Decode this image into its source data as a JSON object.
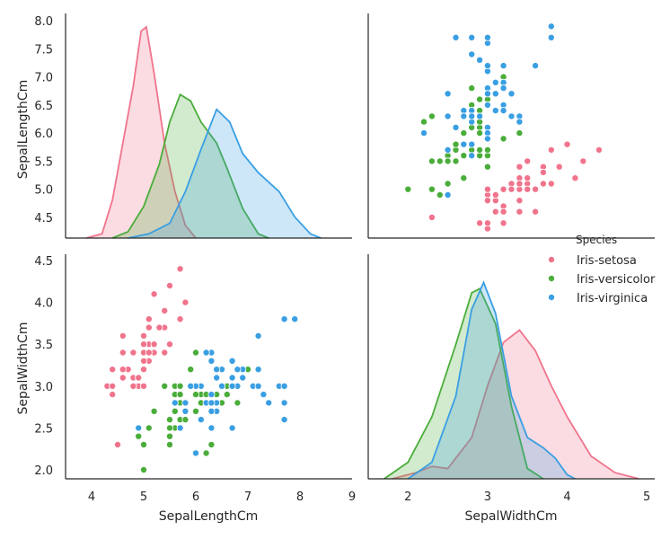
{
  "chart_data": {
    "type": "pairplot",
    "title": "",
    "variables": [
      "SepalLengthCm",
      "SepalWidthCm"
    ],
    "legend": {
      "title": "Species",
      "placement": "right",
      "entries": [
        {
          "label": "Iris-setosa",
          "color": "#f0748c"
        },
        {
          "label": "Iris-versicolor",
          "color": "#4aad3a"
        },
        {
          "label": "Iris-virginica",
          "color": "#3a9fe2"
        }
      ]
    },
    "axes": {
      "SepalLengthCm": {
        "range": [
          3.5,
          9.0
        ],
        "ticks": [
          "4",
          "5",
          "6",
          "7",
          "8",
          "9"
        ],
        "diag_ticks": [
          "4.5",
          "5.0",
          "5.5",
          "6.0",
          "6.5",
          "7.0",
          "7.5",
          "8.0"
        ]
      },
      "SepalWidthCm": {
        "range": [
          1.5,
          5.1
        ],
        "ticks": [
          "2",
          "3",
          "4",
          "5"
        ],
        "diag_ticks": [
          "2.0",
          "2.5",
          "3.0",
          "3.5",
          "4.0",
          "4.5"
        ]
      }
    },
    "kde": {
      "SepalLengthCm": [
        {
          "species": "Iris-setosa",
          "points": [
            [
              3.9,
              0.0
            ],
            [
              4.2,
              0.02
            ],
            [
              4.4,
              0.18
            ],
            [
              4.6,
              0.45
            ],
            [
              4.8,
              0.72
            ],
            [
              4.95,
              0.98
            ],
            [
              5.05,
              1.0
            ],
            [
              5.2,
              0.78
            ],
            [
              5.4,
              0.45
            ],
            [
              5.6,
              0.22
            ],
            [
              5.8,
              0.06
            ],
            [
              6.0,
              0.0
            ]
          ]
        },
        {
          "species": "Iris-versicolor",
          "points": [
            [
              4.4,
              0.0
            ],
            [
              4.7,
              0.03
            ],
            [
              5.0,
              0.15
            ],
            [
              5.3,
              0.35
            ],
            [
              5.5,
              0.55
            ],
            [
              5.7,
              0.68
            ],
            [
              5.9,
              0.65
            ],
            [
              6.1,
              0.55
            ],
            [
              6.4,
              0.45
            ],
            [
              6.6,
              0.33
            ],
            [
              6.9,
              0.14
            ],
            [
              7.2,
              0.02
            ],
            [
              7.4,
              0.0
            ]
          ]
        },
        {
          "species": "Iris-virginica",
          "points": [
            [
              4.7,
              0.0
            ],
            [
              5.1,
              0.02
            ],
            [
              5.5,
              0.07
            ],
            [
              5.8,
              0.22
            ],
            [
              6.1,
              0.42
            ],
            [
              6.4,
              0.61
            ],
            [
              6.65,
              0.55
            ],
            [
              6.9,
              0.4
            ],
            [
              7.2,
              0.31
            ],
            [
              7.6,
              0.22
            ],
            [
              7.9,
              0.1
            ],
            [
              8.2,
              0.02
            ],
            [
              8.4,
              0.0
            ]
          ]
        }
      ],
      "SepalWidthCm": [
        {
          "species": "Iris-setosa",
          "points": [
            [
              1.8,
              0.0
            ],
            [
              2.1,
              0.03
            ],
            [
              2.3,
              0.06
            ],
            [
              2.5,
              0.05
            ],
            [
              2.8,
              0.2
            ],
            [
              3.0,
              0.45
            ],
            [
              3.2,
              0.66
            ],
            [
              3.4,
              0.72
            ],
            [
              3.6,
              0.62
            ],
            [
              3.8,
              0.45
            ],
            [
              4.0,
              0.3
            ],
            [
              4.3,
              0.11
            ],
            [
              4.6,
              0.03
            ],
            [
              4.9,
              0.0
            ]
          ]
        },
        {
          "species": "Iris-versicolor",
          "points": [
            [
              1.7,
              0.0
            ],
            [
              2.0,
              0.08
            ],
            [
              2.3,
              0.3
            ],
            [
              2.6,
              0.65
            ],
            [
              2.8,
              0.9
            ],
            [
              2.9,
              0.92
            ],
            [
              3.1,
              0.75
            ],
            [
              3.3,
              0.35
            ],
            [
              3.5,
              0.05
            ],
            [
              3.7,
              0.0
            ]
          ]
        },
        {
          "species": "Iris-virginica",
          "points": [
            [
              2.0,
              0.0
            ],
            [
              2.3,
              0.08
            ],
            [
              2.6,
              0.4
            ],
            [
              2.8,
              0.82
            ],
            [
              2.95,
              0.95
            ],
            [
              3.1,
              0.8
            ],
            [
              3.3,
              0.4
            ],
            [
              3.5,
              0.2
            ],
            [
              3.7,
              0.15
            ],
            [
              3.85,
              0.1
            ],
            [
              4.0,
              0.02
            ],
            [
              4.1,
              0.0
            ]
          ]
        }
      ]
    },
    "scatter": [
      {
        "species": "Iris-setosa",
        "points": [
          [
            5.1,
            3.5
          ],
          [
            4.9,
            3.0
          ],
          [
            4.7,
            3.2
          ],
          [
            4.6,
            3.1
          ],
          [
            5.0,
            3.6
          ],
          [
            5.4,
            3.9
          ],
          [
            4.6,
            3.4
          ],
          [
            5.0,
            3.4
          ],
          [
            4.4,
            2.9
          ],
          [
            4.9,
            3.1
          ],
          [
            5.4,
            3.7
          ],
          [
            4.8,
            3.4
          ],
          [
            4.8,
            3.0
          ],
          [
            4.3,
            3.0
          ],
          [
            5.8,
            4.0
          ],
          [
            5.7,
            4.4
          ],
          [
            5.4,
            3.9
          ],
          [
            5.1,
            3.5
          ],
          [
            5.7,
            3.8
          ],
          [
            5.1,
            3.8
          ],
          [
            5.4,
            3.4
          ],
          [
            5.1,
            3.7
          ],
          [
            4.6,
            3.6
          ],
          [
            5.1,
            3.3
          ],
          [
            4.8,
            3.4
          ],
          [
            5.0,
            3.0
          ],
          [
            5.0,
            3.4
          ],
          [
            5.2,
            3.5
          ],
          [
            5.2,
            3.4
          ],
          [
            4.7,
            3.2
          ],
          [
            4.8,
            3.1
          ],
          [
            5.4,
            3.4
          ],
          [
            5.2,
            4.1
          ],
          [
            5.5,
            4.2
          ],
          [
            4.9,
            3.1
          ],
          [
            5.0,
            3.2
          ],
          [
            5.5,
            3.5
          ],
          [
            4.9,
            3.1
          ],
          [
            4.4,
            3.0
          ],
          [
            5.1,
            3.4
          ],
          [
            5.0,
            3.5
          ],
          [
            4.5,
            2.3
          ],
          [
            4.4,
            3.2
          ],
          [
            5.0,
            3.5
          ],
          [
            5.1,
            3.8
          ],
          [
            4.8,
            3.0
          ],
          [
            5.1,
            3.8
          ],
          [
            4.6,
            3.2
          ],
          [
            5.3,
            3.7
          ],
          [
            5.0,
            3.3
          ]
        ]
      },
      {
        "species": "Iris-versicolor",
        "points": [
          [
            7.0,
            3.2
          ],
          [
            6.4,
            3.2
          ],
          [
            6.9,
            3.1
          ],
          [
            5.5,
            2.3
          ],
          [
            6.5,
            2.8
          ],
          [
            5.7,
            2.8
          ],
          [
            6.3,
            3.3
          ],
          [
            4.9,
            2.4
          ],
          [
            6.6,
            2.9
          ],
          [
            5.2,
            2.7
          ],
          [
            5.0,
            2.0
          ],
          [
            5.9,
            3.0
          ],
          [
            6.0,
            2.2
          ],
          [
            6.1,
            2.9
          ],
          [
            5.6,
            2.9
          ],
          [
            6.7,
            3.1
          ],
          [
            5.6,
            3.0
          ],
          [
            5.8,
            2.7
          ],
          [
            6.2,
            2.2
          ],
          [
            5.6,
            2.5
          ],
          [
            5.9,
            3.2
          ],
          [
            6.1,
            2.8
          ],
          [
            6.3,
            2.5
          ],
          [
            6.1,
            2.8
          ],
          [
            6.4,
            2.9
          ],
          [
            6.6,
            3.0
          ],
          [
            6.8,
            2.8
          ],
          [
            6.7,
            3.0
          ],
          [
            6.0,
            2.9
          ],
          [
            5.7,
            2.6
          ],
          [
            5.5,
            2.4
          ],
          [
            5.5,
            2.4
          ],
          [
            5.8,
            2.7
          ],
          [
            6.0,
            2.7
          ],
          [
            5.4,
            3.0
          ],
          [
            6.0,
            3.4
          ],
          [
            6.7,
            3.1
          ],
          [
            6.3,
            2.3
          ],
          [
            5.6,
            3.0
          ],
          [
            5.5,
            2.5
          ],
          [
            5.5,
            2.6
          ],
          [
            6.1,
            3.0
          ],
          [
            5.8,
            2.6
          ],
          [
            5.0,
            2.3
          ],
          [
            5.6,
            2.7
          ],
          [
            5.7,
            3.0
          ],
          [
            5.7,
            2.9
          ],
          [
            6.2,
            2.9
          ],
          [
            5.1,
            2.5
          ],
          [
            5.7,
            2.8
          ]
        ]
      },
      {
        "species": "Iris-virginica",
        "points": [
          [
            6.3,
            3.3
          ],
          [
            5.8,
            2.7
          ],
          [
            7.1,
            3.0
          ],
          [
            6.3,
            2.9
          ],
          [
            6.5,
            3.0
          ],
          [
            7.6,
            3.0
          ],
          [
            4.9,
            2.5
          ],
          [
            7.3,
            2.9
          ],
          [
            6.7,
            2.5
          ],
          [
            7.2,
            3.6
          ],
          [
            6.5,
            3.2
          ],
          [
            6.4,
            2.7
          ],
          [
            6.8,
            3.0
          ],
          [
            5.7,
            2.5
          ],
          [
            5.8,
            2.8
          ],
          [
            6.4,
            3.2
          ],
          [
            6.5,
            3.0
          ],
          [
            7.7,
            3.8
          ],
          [
            7.7,
            2.6
          ],
          [
            6.0,
            2.2
          ],
          [
            6.9,
            3.2
          ],
          [
            5.6,
            2.8
          ],
          [
            7.7,
            2.8
          ],
          [
            6.3,
            2.7
          ],
          [
            6.7,
            3.3
          ],
          [
            7.2,
            3.2
          ],
          [
            6.2,
            2.8
          ],
          [
            6.1,
            3.0
          ],
          [
            6.4,
            2.8
          ],
          [
            7.2,
            3.0
          ],
          [
            7.4,
            2.8
          ],
          [
            7.9,
            3.8
          ],
          [
            6.4,
            2.8
          ],
          [
            6.3,
            2.8
          ],
          [
            6.1,
            2.6
          ],
          [
            7.7,
            3.0
          ],
          [
            6.3,
            3.4
          ],
          [
            6.4,
            3.1
          ],
          [
            6.0,
            3.0
          ],
          [
            6.9,
            3.1
          ],
          [
            6.7,
            3.1
          ],
          [
            6.9,
            3.1
          ],
          [
            5.8,
            2.7
          ],
          [
            6.8,
            3.2
          ],
          [
            6.7,
            3.3
          ],
          [
            6.7,
            3.0
          ],
          [
            6.3,
            2.5
          ],
          [
            6.5,
            3.0
          ],
          [
            6.2,
            3.4
          ],
          [
            5.9,
            3.0
          ]
        ]
      }
    ]
  }
}
